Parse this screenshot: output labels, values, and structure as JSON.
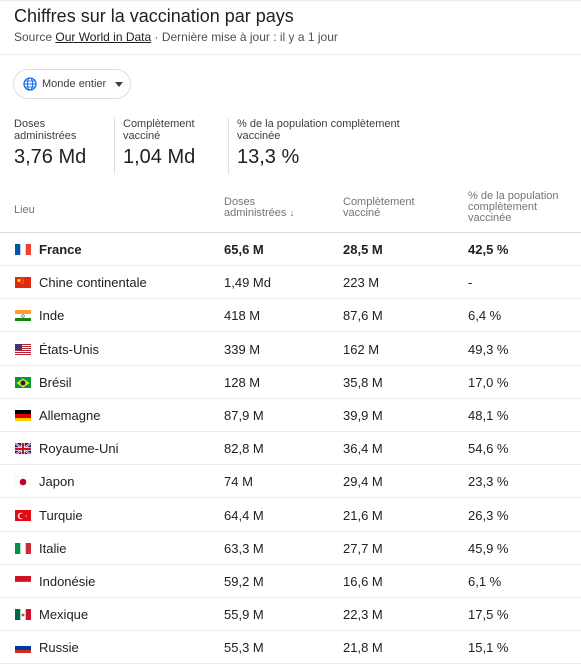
{
  "header": {
    "title": "Chiffres sur la vaccination par pays",
    "source_prefix": "Source ",
    "source_link": "Our World in Data",
    "update_text": " · Dernière mise à jour : il y a 1 jour"
  },
  "region_selector": {
    "label": "Monde entier",
    "icon": "globe-icon"
  },
  "summary": {
    "doses": {
      "label": "Doses administrées",
      "value": "3,76 Md"
    },
    "full": {
      "label": "Complètement vacciné",
      "value": "1,04 Md"
    },
    "pct": {
      "label": "% de la population complètement vaccinée",
      "value": "13,3 %"
    }
  },
  "table": {
    "headers": {
      "place": "Lieu",
      "doses": "Doses administrées",
      "full": "Complètement vacciné",
      "pct": "% de la population complètement vaccinée"
    },
    "rows": [
      {
        "name": "France",
        "doses": "65,6 M",
        "full": "28,5 M",
        "pct": "42,5 %",
        "flag": "fr"
      },
      {
        "name": "Chine continentale",
        "doses": "1,49 Md",
        "full": "223 M",
        "pct": "-",
        "flag": "cn"
      },
      {
        "name": "Inde",
        "doses": "418 M",
        "full": "87,6 M",
        "pct": "6,4 %",
        "flag": "in"
      },
      {
        "name": "États-Unis",
        "doses": "339 M",
        "full": "162 M",
        "pct": "49,3 %",
        "flag": "us"
      },
      {
        "name": "Brésil",
        "doses": "128 M",
        "full": "35,8 M",
        "pct": "17,0 %",
        "flag": "br"
      },
      {
        "name": "Allemagne",
        "doses": "87,9 M",
        "full": "39,9 M",
        "pct": "48,1 %",
        "flag": "de"
      },
      {
        "name": "Royaume-Uni",
        "doses": "82,8 M",
        "full": "36,4 M",
        "pct": "54,6 %",
        "flag": "gb"
      },
      {
        "name": "Japon",
        "doses": "74 M",
        "full": "29,4 M",
        "pct": "23,3 %",
        "flag": "jp"
      },
      {
        "name": "Turquie",
        "doses": "64,4 M",
        "full": "21,6 M",
        "pct": "26,3 %",
        "flag": "tr"
      },
      {
        "name": "Italie",
        "doses": "63,3 M",
        "full": "27,7 M",
        "pct": "45,9 %",
        "flag": "it"
      },
      {
        "name": "Indonésie",
        "doses": "59,2 M",
        "full": "16,6 M",
        "pct": "6,1 %",
        "flag": "id"
      },
      {
        "name": "Mexique",
        "doses": "55,9 M",
        "full": "22,3 M",
        "pct": "17,5 %",
        "flag": "mx"
      },
      {
        "name": "Russie",
        "doses": "55,3 M",
        "full": "21,8 M",
        "pct": "15,1 %",
        "flag": "ru"
      }
    ]
  }
}
